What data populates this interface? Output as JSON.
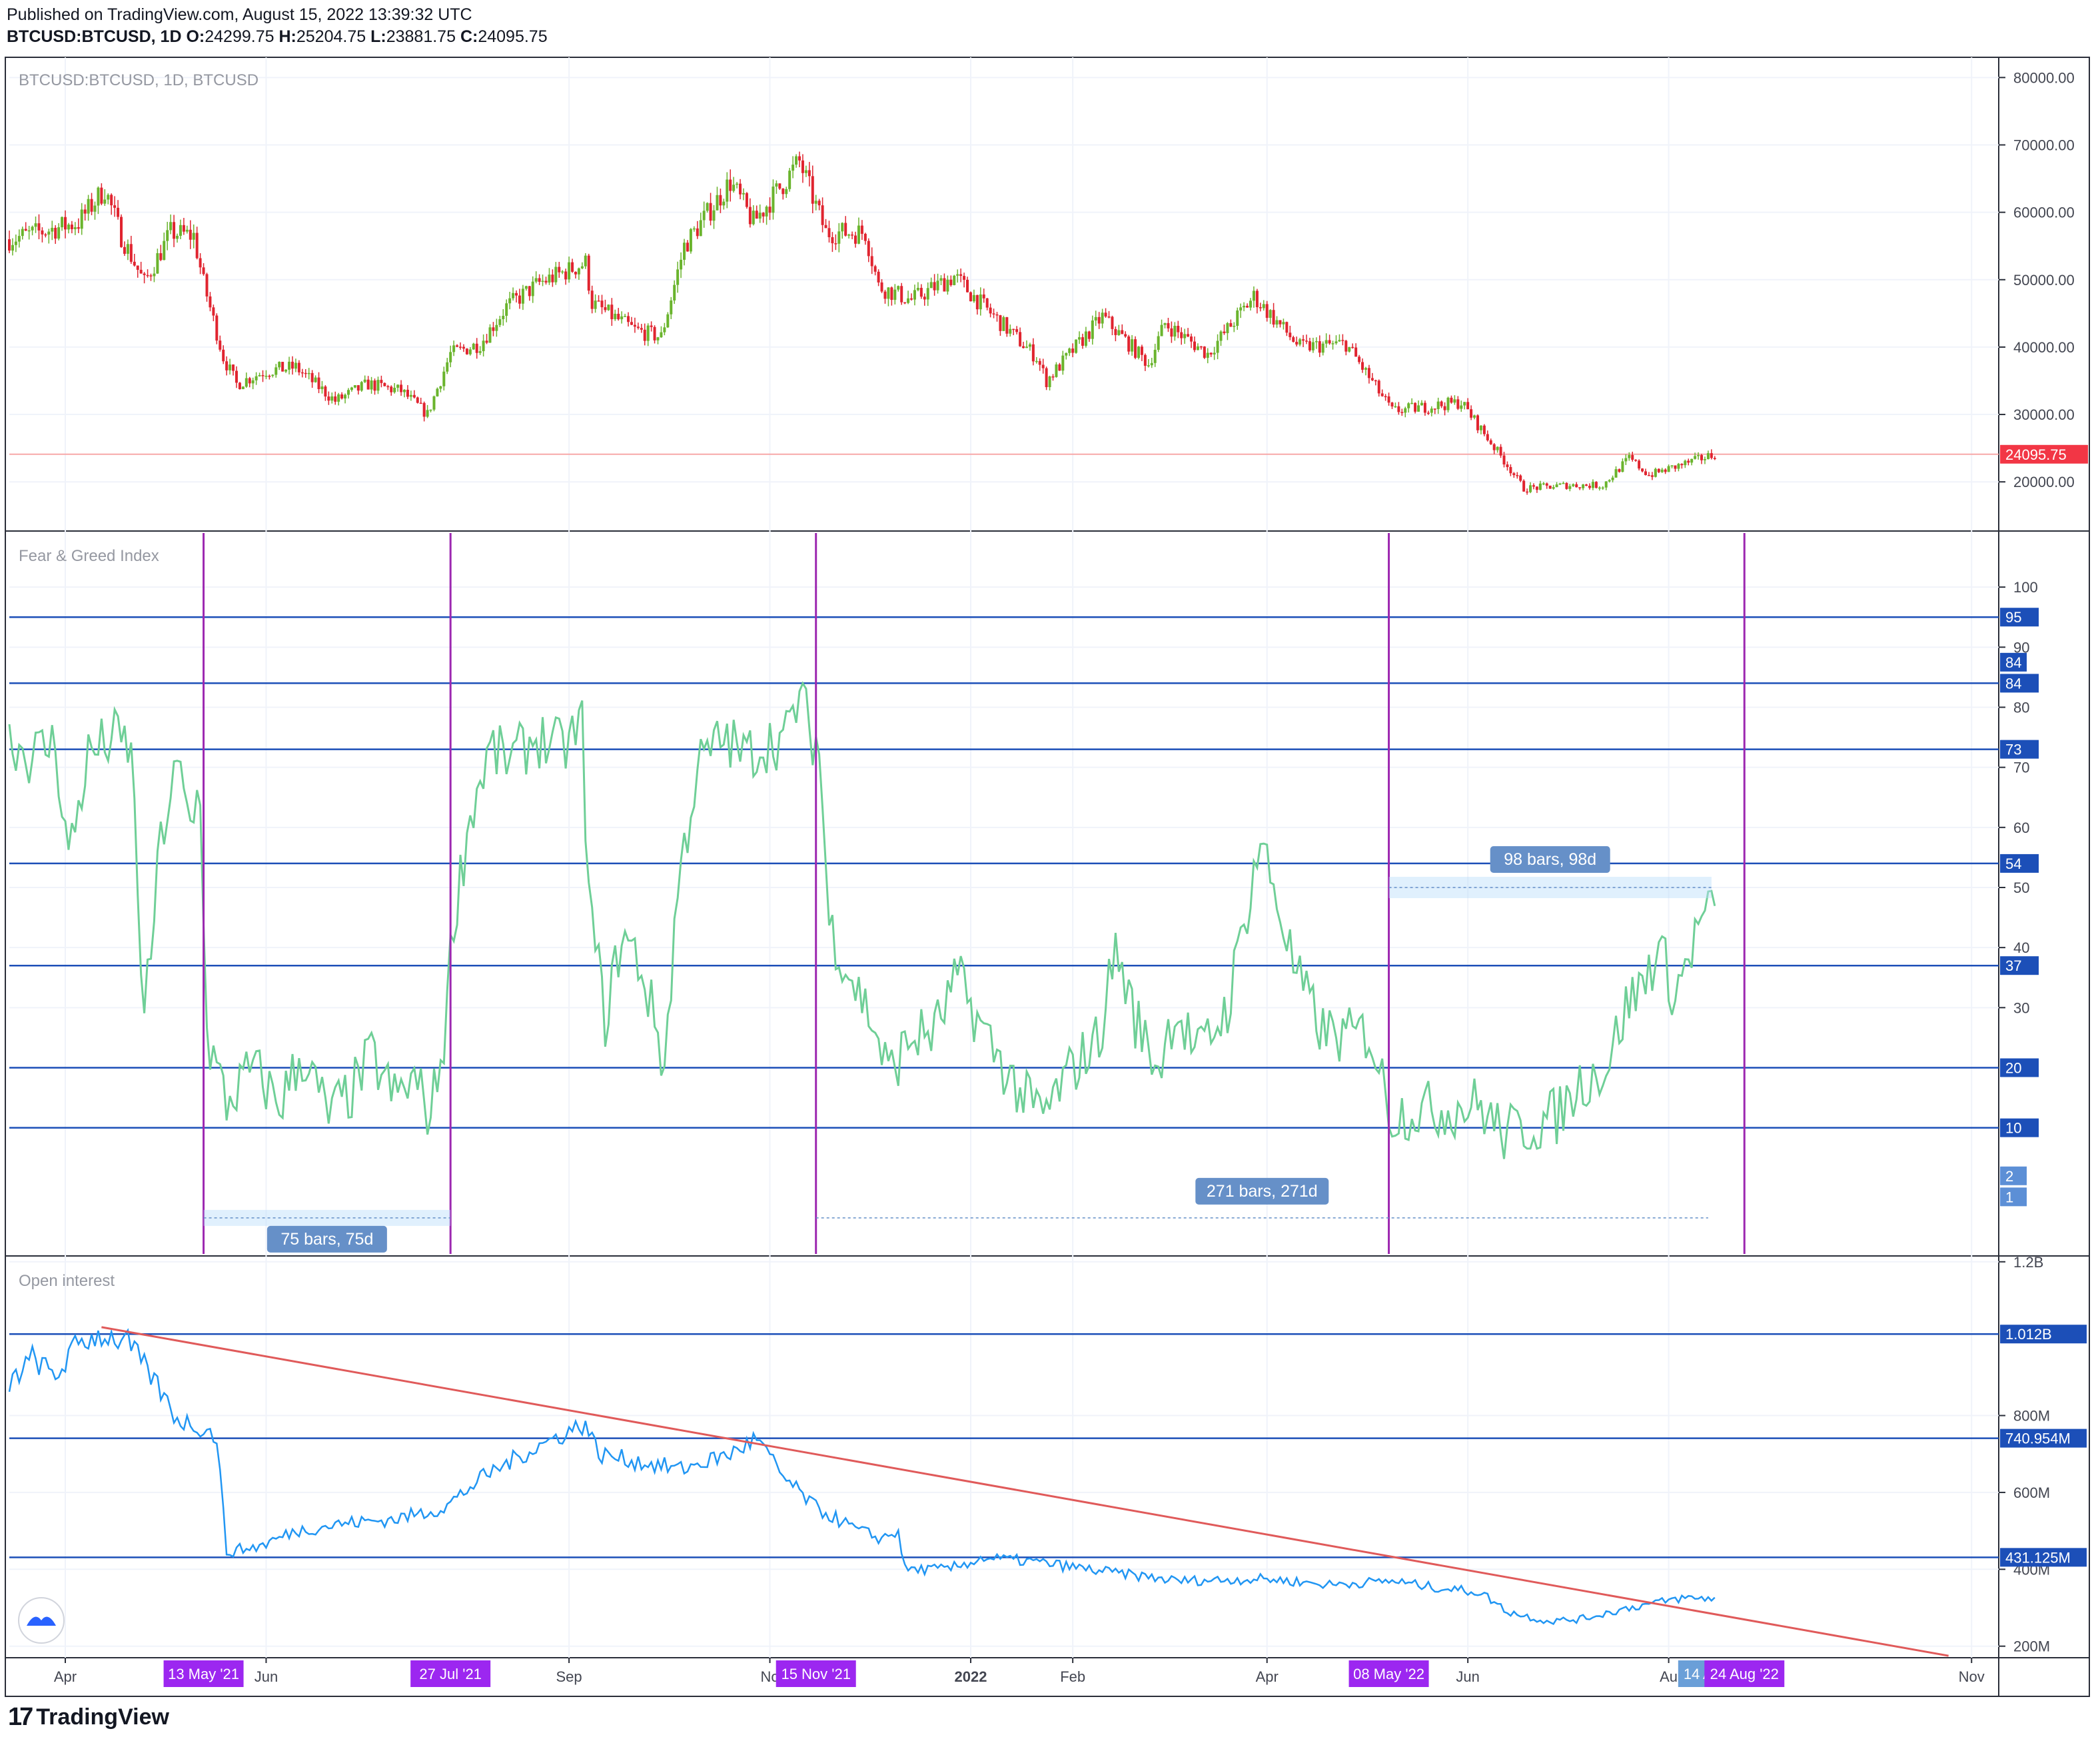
{
  "header": {
    "published": "Published on TradingView.com, August 15, 2022 13:39:32 UTC",
    "symbol": "BTCUSD:BTCUSD, 1D",
    "o_label": "O:",
    "o": "24299.75",
    "h_label": "H:",
    "h": "25204.75",
    "l_label": "L:",
    "l": "23881.75",
    "c_label": "C:",
    "c": "24095.75"
  },
  "footer": {
    "brand": "TradingView",
    "logo_glyph": "17"
  },
  "colors": {
    "up": "#6ab42d",
    "down": "#e0242f",
    "fng": "#6fcf97",
    "oi": "#2196f3",
    "hline": "#1c4fb8",
    "vline": "#9c27b0",
    "trend": "#e05a5a",
    "price_line": "#f7a8a8",
    "date_badge": "#9c27f0",
    "range_badge": "#6690c8"
  },
  "chart_data": [
    {
      "type": "candlestick",
      "title": "BTCUSD:BTCUSD, 1D, BTCUSD",
      "y_ticks": [
        20000,
        30000,
        40000,
        50000,
        60000,
        70000,
        80000
      ],
      "y_tick_labels": [
        "20000.00",
        "30000.00",
        "40000.00",
        "50000.00",
        "60000.00",
        "70000.00",
        "80000.00"
      ],
      "ylim": [
        13000,
        83000
      ],
      "last_price": 24095.75,
      "last_price_label": "24095.75",
      "close_path": [
        [
          "2021-03-15",
          56000
        ],
        [
          "2021-03-28",
          57500
        ],
        [
          "2021-04-05",
          58500
        ],
        [
          "2021-04-13",
          63500
        ],
        [
          "2021-04-18",
          56500
        ],
        [
          "2021-04-25",
          49500
        ],
        [
          "2021-05-03",
          57000
        ],
        [
          "2021-05-10",
          56500
        ],
        [
          "2021-05-13",
          49500
        ],
        [
          "2021-05-19",
          38500
        ],
        [
          "2021-05-23",
          34500
        ],
        [
          "2021-06-01",
          36500
        ],
        [
          "2021-06-10",
          37000
        ],
        [
          "2021-06-22",
          32000
        ],
        [
          "2021-07-02",
          34500
        ],
        [
          "2021-07-12",
          33500
        ],
        [
          "2021-07-20",
          30000
        ],
        [
          "2021-07-27",
          39000
        ],
        [
          "2021-08-05",
          40500
        ],
        [
          "2021-08-13",
          46000
        ],
        [
          "2021-08-23",
          49500
        ],
        [
          "2021-09-06",
          52500
        ],
        [
          "2021-09-08",
          46500
        ],
        [
          "2021-09-21",
          42500
        ],
        [
          "2021-09-29",
          41500
        ],
        [
          "2021-10-06",
          55000
        ],
        [
          "2021-10-20",
          64500
        ],
        [
          "2021-10-27",
          58500
        ],
        [
          "2021-11-10",
          67500
        ],
        [
          "2021-11-18",
          57000
        ],
        [
          "2021-11-30",
          57000
        ],
        [
          "2021-12-04",
          49000
        ],
        [
          "2021-12-14",
          47000
        ],
        [
          "2021-12-27",
          50500
        ],
        [
          "2022-01-05",
          46000
        ],
        [
          "2022-01-21",
          38500
        ],
        [
          "2022-01-24",
          35000
        ],
        [
          "2022-02-10",
          44500
        ],
        [
          "2022-02-24",
          37500
        ],
        [
          "2022-03-01",
          43500
        ],
        [
          "2022-03-14",
          39000
        ],
        [
          "2022-03-28",
          47500
        ],
        [
          "2022-04-11",
          40000
        ],
        [
          "2022-04-25",
          40500
        ],
        [
          "2022-05-09",
          30500
        ],
        [
          "2022-05-30",
          31800
        ],
        [
          "2022-06-13",
          22500
        ],
        [
          "2022-06-18",
          19000
        ],
        [
          "2022-07-01",
          19500
        ],
        [
          "2022-07-12",
          19500
        ],
        [
          "2022-07-20",
          23500
        ],
        [
          "2022-07-26",
          21000
        ],
        [
          "2022-08-15",
          24100
        ]
      ]
    },
    {
      "type": "line",
      "title": "Fear & Greed Index",
      "y_ticks": [
        30,
        40,
        50,
        60,
        70,
        80,
        90,
        100
      ],
      "y_tick_labels": [
        "30",
        "40",
        "50",
        "60",
        "70",
        "80",
        "90",
        "100"
      ],
      "ylim": [
        -11,
        109
      ],
      "levels": [
        {
          "value": 95,
          "label": "95"
        },
        {
          "value": 84,
          "label": "84"
        },
        {
          "value": 73,
          "label": "73"
        },
        {
          "value": 54,
          "label": "54"
        },
        {
          "value": 37,
          "label": "37"
        },
        {
          "value": 20,
          "label": "20"
        },
        {
          "value": 10,
          "label": "10"
        }
      ],
      "axis_badges": [
        {
          "value": 87.5,
          "label": "84"
        },
        {
          "value": 2,
          "label": "2"
        },
        {
          "value": -1.5,
          "label": "1"
        }
      ],
      "path": [
        [
          "2021-03-15",
          75
        ],
        [
          "2021-03-21",
          72
        ],
        [
          "2021-03-29",
          74
        ],
        [
          "2021-04-02",
          55
        ],
        [
          "2021-04-08",
          72
        ],
        [
          "2021-04-16",
          75
        ],
        [
          "2021-04-21",
          73
        ],
        [
          "2021-04-25",
          27
        ],
        [
          "2021-04-30",
          58
        ],
        [
          "2021-05-05",
          70
        ],
        [
          "2021-05-09",
          60
        ],
        [
          "2021-05-12",
          67
        ],
        [
          "2021-05-14",
          25
        ],
        [
          "2021-05-20",
          14
        ],
        [
          "2021-05-28",
          20
        ],
        [
          "2021-06-05",
          14
        ],
        [
          "2021-06-12",
          22
        ],
        [
          "2021-06-20",
          12
        ],
        [
          "2021-06-27",
          16
        ],
        [
          "2021-07-03",
          22
        ],
        [
          "2021-07-10",
          15
        ],
        [
          "2021-07-16",
          18
        ],
        [
          "2021-07-21",
          12
        ],
        [
          "2021-07-25",
          25
        ],
        [
          "2021-07-28",
          45
        ],
        [
          "2021-08-02",
          62
        ],
        [
          "2021-08-08",
          73
        ],
        [
          "2021-08-14",
          71
        ],
        [
          "2021-08-22",
          75
        ],
        [
          "2021-08-30",
          73
        ],
        [
          "2021-09-05",
          77
        ],
        [
          "2021-09-07",
          48
        ],
        [
          "2021-09-12",
          28
        ],
        [
          "2021-09-17",
          42
        ],
        [
          "2021-09-22",
          38
        ],
        [
          "2021-09-27",
          28
        ],
        [
          "2021-09-30",
          20
        ],
        [
          "2021-10-04",
          50
        ],
        [
          "2021-10-10",
          70
        ],
        [
          "2021-10-18",
          75
        ],
        [
          "2021-10-24",
          72
        ],
        [
          "2021-10-31",
          74
        ],
        [
          "2021-11-06",
          75
        ],
        [
          "2021-11-10",
          82
        ],
        [
          "2021-11-14",
          75
        ],
        [
          "2021-11-16",
          73
        ],
        [
          "2021-11-19",
          44
        ],
        [
          "2021-11-25",
          36
        ],
        [
          "2021-12-02",
          28
        ],
        [
          "2021-12-07",
          19
        ],
        [
          "2021-12-14",
          25
        ],
        [
          "2021-12-21",
          26
        ],
        [
          "2021-12-28",
          35
        ],
        [
          "2022-01-03",
          28
        ],
        [
          "2022-01-09",
          22
        ],
        [
          "2022-01-17",
          15
        ],
        [
          "2022-01-23",
          12
        ],
        [
          "2022-02-01",
          20
        ],
        [
          "2022-02-09",
          25
        ],
        [
          "2022-02-14",
          40
        ],
        [
          "2022-02-20",
          28
        ],
        [
          "2022-02-27",
          20
        ],
        [
          "2022-03-04",
          30
        ],
        [
          "2022-03-11",
          22
        ],
        [
          "2022-03-20",
          30
        ],
        [
          "2022-03-30",
          58
        ],
        [
          "2022-04-04",
          48
        ],
        [
          "2022-04-10",
          35
        ],
        [
          "2022-04-18",
          26
        ],
        [
          "2022-04-25",
          25
        ],
        [
          "2022-05-02",
          26
        ],
        [
          "2022-05-09",
          12
        ],
        [
          "2022-05-15",
          13
        ],
        [
          "2022-05-25",
          13
        ],
        [
          "2022-06-04",
          14
        ],
        [
          "2022-06-12",
          9
        ],
        [
          "2022-06-19",
          10
        ],
        [
          "2022-06-28",
          12
        ],
        [
          "2022-07-06",
          18
        ],
        [
          "2022-07-13",
          20
        ],
        [
          "2022-07-19",
          30
        ],
        [
          "2022-07-24",
          34
        ],
        [
          "2022-07-29",
          40
        ],
        [
          "2022-08-03",
          32
        ],
        [
          "2022-08-08",
          40
        ],
        [
          "2022-08-12",
          46
        ],
        [
          "2022-08-15",
          45
        ]
      ],
      "annotations": [
        {
          "text": "75 bars, 75d",
          "from": "2021-05-13",
          "to": "2021-07-27"
        },
        {
          "text": "271 bars, 271d",
          "from": "2021-11-15",
          "to": "2022-08-13"
        },
        {
          "text": "98 bars, 98d",
          "from": "2022-05-08",
          "to": "2022-08-14"
        }
      ]
    },
    {
      "type": "line",
      "title": "Open interest",
      "y_ticks": [
        200000000,
        400000000,
        600000000,
        800000000,
        1200000000
      ],
      "y_tick_labels": [
        "200M",
        "400M",
        "600M",
        "800M",
        "1.2B"
      ],
      "ylim": [
        170000000,
        1210000000
      ],
      "levels": [
        {
          "value": 1012000000,
          "label": "1.012B"
        },
        {
          "value": 740954000,
          "label": "740.954M"
        },
        {
          "value": 431125000,
          "label": "431.125M"
        }
      ],
      "trendline": [
        [
          "2021-04-12",
          1030000000
        ],
        [
          "2022-10-25",
          175000000
        ]
      ],
      "path": [
        [
          "2021-03-15",
          880000000
        ],
        [
          "2021-03-22",
          950000000
        ],
        [
          "2021-03-29",
          900000000
        ],
        [
          "2021-04-05",
          990000000
        ],
        [
          "2021-04-12",
          1010000000
        ],
        [
          "2021-04-20",
          990000000
        ],
        [
          "2021-04-28",
          890000000
        ],
        [
          "2021-05-05",
          790000000
        ],
        [
          "2021-05-12",
          770000000
        ],
        [
          "2021-05-17",
          745000000
        ],
        [
          "2021-05-20",
          445000000
        ],
        [
          "2021-05-30",
          460000000
        ],
        [
          "2021-06-10",
          500000000
        ],
        [
          "2021-06-25",
          520000000
        ],
        [
          "2021-07-10",
          530000000
        ],
        [
          "2021-07-25",
          560000000
        ],
        [
          "2021-08-06",
          640000000
        ],
        [
          "2021-08-16",
          690000000
        ],
        [
          "2021-08-25",
          730000000
        ],
        [
          "2021-09-06",
          780000000
        ],
        [
          "2021-09-10",
          700000000
        ],
        [
          "2021-09-22",
          680000000
        ],
        [
          "2021-10-05",
          660000000
        ],
        [
          "2021-10-20",
          700000000
        ],
        [
          "2021-10-28",
          740000000
        ],
        [
          "2021-11-05",
          640000000
        ],
        [
          "2021-11-15",
          560000000
        ],
        [
          "2021-11-28",
          500000000
        ],
        [
          "2021-12-05",
          480000000
        ],
        [
          "2021-12-10",
          500000000
        ],
        [
          "2021-12-12",
          400000000
        ],
        [
          "2021-12-25",
          400000000
        ],
        [
          "2022-01-05",
          430000000
        ],
        [
          "2022-01-20",
          420000000
        ],
        [
          "2022-02-10",
          395000000
        ],
        [
          "2022-03-05",
          370000000
        ],
        [
          "2022-04-01",
          375000000
        ],
        [
          "2022-04-20",
          360000000
        ],
        [
          "2022-05-09",
          370000000
        ],
        [
          "2022-05-20",
          355000000
        ],
        [
          "2022-06-05",
          340000000
        ],
        [
          "2022-06-13",
          290000000
        ],
        [
          "2022-06-25",
          265000000
        ],
        [
          "2022-07-05",
          270000000
        ],
        [
          "2022-07-20",
          300000000
        ],
        [
          "2022-08-05",
          325000000
        ],
        [
          "2022-08-15",
          325000000
        ]
      ]
    }
  ],
  "x_axis": {
    "ticks": [
      {
        "date": "2021-04-01",
        "label": "Apr"
      },
      {
        "date": "2021-06-01",
        "label": "Jun"
      },
      {
        "date": "2021-09-01",
        "label": "Sep"
      },
      {
        "date": "2021-11-01",
        "label": "No"
      },
      {
        "date": "2022-01-01",
        "label": "2022"
      },
      {
        "date": "2022-02-01",
        "label": "Feb"
      },
      {
        "date": "2022-04-01",
        "label": "Apr"
      },
      {
        "date": "2022-06-01",
        "label": "Jun"
      },
      {
        "date": "2022-08-01",
        "label": "Au"
      },
      {
        "date": "2022-11-01",
        "label": "Nov"
      }
    ],
    "vlines": [
      "2021-05-13",
      "2021-07-27",
      "2021-11-15",
      "2022-05-08",
      "2022-08-24"
    ],
    "date_badges": [
      {
        "date": "2021-05-13",
        "label": "13 May '21"
      },
      {
        "date": "2021-07-27",
        "label": "27 Jul '21"
      },
      {
        "date": "2021-11-15",
        "label": "15 Nov '21"
      },
      {
        "date": "2022-05-08",
        "label": "08 May '22"
      },
      {
        "date": "2022-08-24",
        "label": "24 Aug '22"
      }
    ],
    "range_badge": {
      "date": "2022-08-14",
      "label": "14 A"
    }
  }
}
